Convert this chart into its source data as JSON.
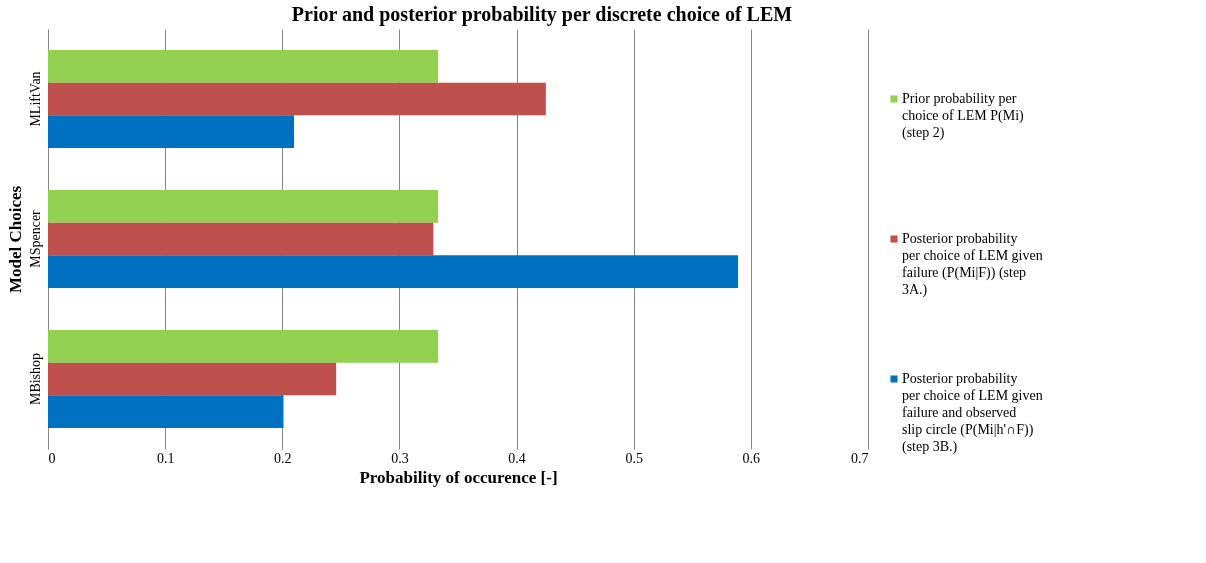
{
  "chart_data": {
    "type": "bar",
    "orientation": "horizontal",
    "title": "Prior and posterior probability per discrete choice of LEM",
    "xlabel": "Probability  of occurence [-]",
    "ylabel": "Model Choices",
    "categories": [
      "MLiftVan",
      "MSpencer",
      "MBishop"
    ],
    "series": [
      {
        "name": "Prior probability per choice of LEM P(Mi) (step 2)",
        "color": "#92d050",
        "values": [
          0.333,
          0.333,
          0.333
        ]
      },
      {
        "name": "Posterior probability per choice of LEM given failure (P(Mi|F)) (step 3A.)",
        "color": "#c0504d",
        "values": [
          0.425,
          0.329,
          0.246
        ]
      },
      {
        "name": "Posterior probability per choice of LEM given failure and observed slip circle (P(Mi|h'∩F)) (step 3B.)",
        "color": "#0070c0",
        "values": [
          0.21,
          0.589,
          0.201
        ]
      }
    ],
    "xlim": [
      0,
      0.7
    ],
    "xticks": [
      0,
      0.1,
      0.2,
      0.3,
      0.4,
      0.5,
      0.6,
      0.7
    ],
    "grid": "x",
    "legend": "right"
  }
}
